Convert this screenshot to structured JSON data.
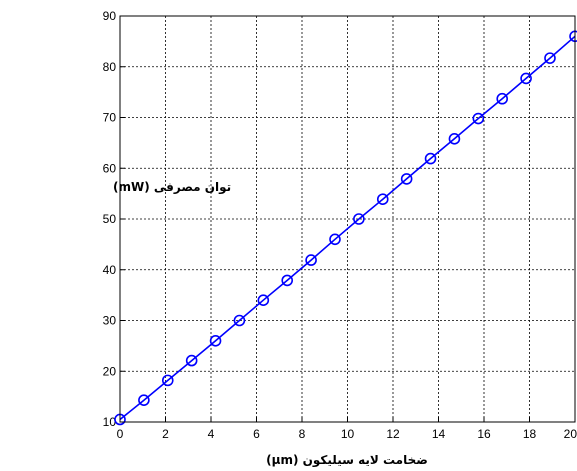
{
  "chart_data": {
    "type": "line",
    "xlabel": "ضخامت لایه سیلیکون (µm)",
    "ylabel": "توان مصرفی (mW)",
    "xlim": [
      0,
      20
    ],
    "ylim": [
      10,
      90
    ],
    "x_ticks": [
      "0",
      "2",
      "4",
      "6",
      "8",
      "10",
      "12",
      "14",
      "16",
      "18",
      "20"
    ],
    "y_ticks": [
      "10",
      "20",
      "30",
      "40",
      "50",
      "60",
      "70",
      "80",
      "90"
    ],
    "grid": true,
    "grid_style": "dotted",
    "line_color": "#0000ff",
    "marker": "circle",
    "series": [
      {
        "x": [
          0,
          1.05,
          2.1,
          3.15,
          4.2,
          5.25,
          6.3,
          7.35,
          8.4,
          9.45,
          10.5,
          11.55,
          12.6,
          13.65,
          14.7,
          15.75,
          16.8,
          17.85,
          18.9,
          20
        ],
        "y": [
          10.5,
          14.3,
          18.2,
          22.1,
          26.0,
          30.0,
          34.0,
          37.9,
          41.9,
          46.0,
          50.0,
          53.9,
          57.9,
          61.9,
          65.8,
          69.8,
          73.7,
          77.7,
          81.7,
          86.0
        ]
      }
    ]
  }
}
